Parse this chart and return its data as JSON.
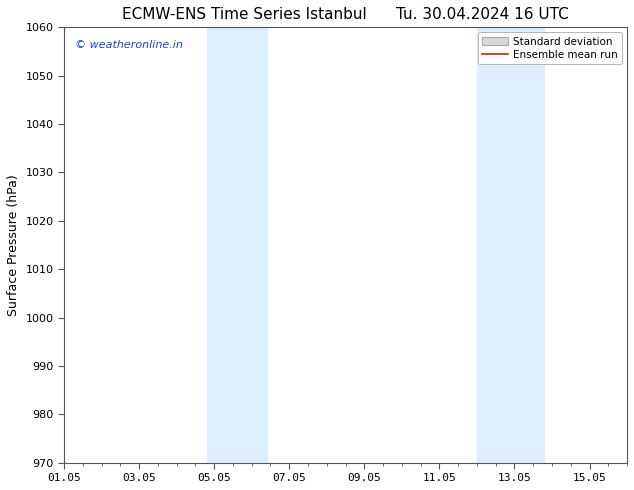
{
  "title": "ECMW-ENS Time Series Istanbul",
  "title2": "Tu. 30.04.2024 16 UTC",
  "ylabel": "Surface Pressure (hPa)",
  "ylim": [
    970,
    1060
  ],
  "yticks": [
    970,
    980,
    990,
    1000,
    1010,
    1020,
    1030,
    1040,
    1050,
    1060
  ],
  "xlim": [
    0,
    15
  ],
  "xtick_labels": [
    "01.05",
    "03.05",
    "05.05",
    "07.05",
    "09.05",
    "11.05",
    "13.05",
    "15.05"
  ],
  "xtick_positions": [
    0,
    2,
    4,
    6,
    8,
    10,
    12,
    14
  ],
  "shaded_regions": [
    {
      "x_start": 3.8,
      "x_end": 5.4
    },
    {
      "x_start": 11.0,
      "x_end": 12.8
    }
  ],
  "shaded_color": "#ddeeff",
  "watermark_text": "© weatheronline.in",
  "watermark_color": "#2244bb",
  "legend_std_label": "Standard deviation",
  "legend_mean_label": "Ensemble mean run",
  "legend_std_facecolor": "#d8d8d8",
  "legend_std_edgecolor": "#aaaaaa",
  "legend_mean_color": "#cc2200",
  "background_color": "#ffffff",
  "spine_color": "#555555",
  "tick_color": "#333333",
  "title_fontsize": 11,
  "ylabel_fontsize": 9,
  "tick_fontsize": 8,
  "watermark_fontsize": 8,
  "legend_fontsize": 7.5
}
